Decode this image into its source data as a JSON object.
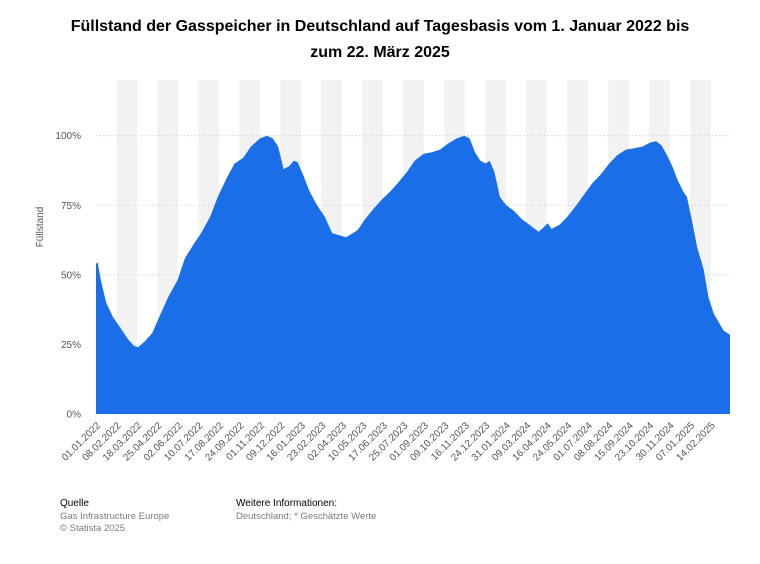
{
  "title_line1": "Füllstand der Gasspeicher in Deutschland auf Tagesbasis vom 1. Januar 2022 bis",
  "title_line2": "zum 22. März 2025",
  "footer": {
    "source_heading": "Quelle",
    "source_line1": "Gas Infrastructure Europe",
    "source_line2": "© Statista 2025",
    "info_heading": "Weitere Informationen:",
    "info_line1": "Deutschland; * Geschätzte Werte"
  },
  "colors": {
    "area": "#1a6ee8",
    "band": "#f2f2f2",
    "grid": "#cfcfcf",
    "axis_text": "#555555"
  },
  "chart_data": {
    "type": "area",
    "title": "Füllstand der Gasspeicher in Deutschland auf Tagesbasis vom 1. Januar 2022 bis zum 22. März 2025",
    "ylabel": "Füllstand",
    "xlabel": "",
    "ylim": [
      0,
      1.2
    ],
    "y_ticks": [
      0,
      0.25,
      0.5,
      0.75,
      1.0
    ],
    "y_tick_labels": [
      "0%",
      "25%",
      "50%",
      "75%",
      "100%"
    ],
    "grid": true,
    "x_range": [
      "2022-01-01",
      "2025-03-22"
    ],
    "x_tick_labels": [
      "01.01.2022",
      "08.02.2022",
      "18.03.2022",
      "25.04.2022",
      "02.06.2022",
      "10.07.2022",
      "17.08.2022",
      "24.09.2022",
      "01.11.2022",
      "09.12.2022",
      "16.01.2023",
      "23.02.2023",
      "02.04.2023",
      "10.05.2023",
      "17.06.2023",
      "25.07.2023",
      "01.09.2023",
      "09.10.2023",
      "16.11.2023",
      "24.12.2023",
      "31.01.2024",
      "09.03.2024",
      "16.04.2024",
      "24.05.2024",
      "01.07.2024",
      "08.08.2024",
      "15.09.2024",
      "23.10.2024",
      "30.11.2024",
      "07.01.2025",
      "14.02.2025"
    ],
    "series": [
      {
        "values": [
          [
            "2022-01-01",
            0.54
          ],
          [
            "2022-01-04",
            0.545
          ],
          [
            "2022-01-10",
            0.48
          ],
          [
            "2022-01-20",
            0.4
          ],
          [
            "2022-02-01",
            0.35
          ],
          [
            "2022-02-15",
            0.31
          ],
          [
            "2022-03-01",
            0.27
          ],
          [
            "2022-03-12",
            0.245
          ],
          [
            "2022-03-20",
            0.24
          ],
          [
            "2022-04-01",
            0.26
          ],
          [
            "2022-04-15",
            0.29
          ],
          [
            "2022-05-01",
            0.36
          ],
          [
            "2022-05-15",
            0.42
          ],
          [
            "2022-06-01",
            0.48
          ],
          [
            "2022-06-15",
            0.56
          ],
          [
            "2022-07-01",
            0.61
          ],
          [
            "2022-07-15",
            0.65
          ],
          [
            "2022-08-01",
            0.71
          ],
          [
            "2022-08-15",
            0.78
          ],
          [
            "2022-09-01",
            0.85
          ],
          [
            "2022-09-15",
            0.9
          ],
          [
            "2022-10-01",
            0.92
          ],
          [
            "2022-10-15",
            0.96
          ],
          [
            "2022-11-01",
            0.99
          ],
          [
            "2022-11-14",
            1.0
          ],
          [
            "2022-11-25",
            0.99
          ],
          [
            "2022-12-05",
            0.96
          ],
          [
            "2022-12-15",
            0.88
          ],
          [
            "2022-12-25",
            0.89
          ],
          [
            "2023-01-03",
            0.91
          ],
          [
            "2023-01-10",
            0.905
          ],
          [
            "2023-01-20",
            0.86
          ],
          [
            "2023-02-01",
            0.8
          ],
          [
            "2023-02-15",
            0.75
          ],
          [
            "2023-03-01",
            0.71
          ],
          [
            "2023-03-15",
            0.65
          ],
          [
            "2023-04-01",
            0.64
          ],
          [
            "2023-04-10",
            0.635
          ],
          [
            "2023-05-01",
            0.66
          ],
          [
            "2023-05-15",
            0.7
          ],
          [
            "2023-06-01",
            0.74
          ],
          [
            "2023-06-15",
            0.77
          ],
          [
            "2023-07-01",
            0.8
          ],
          [
            "2023-07-15",
            0.83
          ],
          [
            "2023-08-01",
            0.87
          ],
          [
            "2023-08-15",
            0.91
          ],
          [
            "2023-09-01",
            0.935
          ],
          [
            "2023-09-15",
            0.94
          ],
          [
            "2023-10-01",
            0.95
          ],
          [
            "2023-10-15",
            0.97
          ],
          [
            "2023-11-01",
            0.99
          ],
          [
            "2023-11-15",
            1.0
          ],
          [
            "2023-11-25",
            0.99
          ],
          [
            "2023-12-05",
            0.94
          ],
          [
            "2023-12-15",
            0.91
          ],
          [
            "2023-12-25",
            0.9
          ],
          [
            "2024-01-01",
            0.91
          ],
          [
            "2024-01-10",
            0.87
          ],
          [
            "2024-01-20",
            0.78
          ],
          [
            "2024-02-01",
            0.75
          ],
          [
            "2024-02-15",
            0.73
          ],
          [
            "2024-03-01",
            0.7
          ],
          [
            "2024-03-15",
            0.68
          ],
          [
            "2024-04-01",
            0.655
          ],
          [
            "2024-04-10",
            0.67
          ],
          [
            "2024-04-18",
            0.685
          ],
          [
            "2024-04-25",
            0.665
          ],
          [
            "2024-05-10",
            0.68
          ],
          [
            "2024-05-25",
            0.71
          ],
          [
            "2024-06-10",
            0.75
          ],
          [
            "2024-06-25",
            0.79
          ],
          [
            "2024-07-10",
            0.83
          ],
          [
            "2024-07-25",
            0.86
          ],
          [
            "2024-08-10",
            0.9
          ],
          [
            "2024-08-25",
            0.93
          ],
          [
            "2024-09-10",
            0.95
          ],
          [
            "2024-09-25",
            0.955
          ],
          [
            "2024-10-10",
            0.96
          ],
          [
            "2024-10-25",
            0.975
          ],
          [
            "2024-11-05",
            0.98
          ],
          [
            "2024-11-15",
            0.965
          ],
          [
            "2024-11-25",
            0.93
          ],
          [
            "2024-12-05",
            0.89
          ],
          [
            "2024-12-15",
            0.84
          ],
          [
            "2024-12-25",
            0.8
          ],
          [
            "2025-01-01",
            0.78
          ],
          [
            "2025-01-10",
            0.7
          ],
          [
            "2025-01-20",
            0.6
          ],
          [
            "2025-02-01",
            0.52
          ],
          [
            "2025-02-10",
            0.42
          ],
          [
            "2025-02-20",
            0.36
          ],
          [
            "2025-03-01",
            0.33
          ],
          [
            "2025-03-10",
            0.3
          ],
          [
            "2025-03-22",
            0.285
          ]
        ]
      }
    ]
  }
}
